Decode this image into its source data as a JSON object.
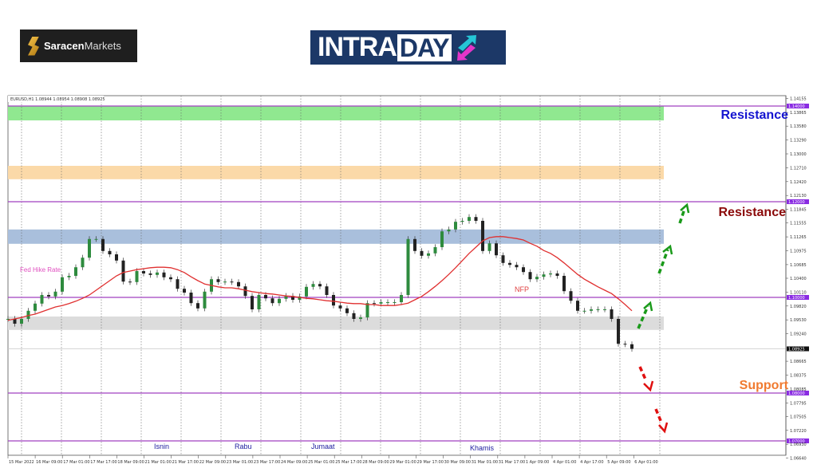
{
  "logos": {
    "saracen": {
      "bold": "Saracen",
      "light": "Markets"
    },
    "intraday": {
      "part1": "INTRA",
      "part2": "DAY"
    }
  },
  "chart_header": "EURUSD,H1 1.08944 1.08954 1.08908 1.08925",
  "colors": {
    "resistance_zone": "#90e890",
    "mid_zone": "#fbd9a8",
    "blue_zone": "#a9bfdc",
    "support_zone": "#dcdcdc",
    "level_line": "#a040c0",
    "ma": "#e03030",
    "bull_arrow": "#1a9a1a",
    "bear_arrow": "#e01010"
  },
  "chart_data": {
    "type": "candlestick",
    "symbol": "EURUSD",
    "timeframe": "H1",
    "x_tick_labels": [
      "15 Mar 2022",
      "16 Mar 09:00",
      "17 Mar 01:00",
      "17 Mar 17:00",
      "18 Mar 09:00",
      "21 Mar 01:00",
      "21 Mar 17:00",
      "22 Mar 09:00",
      "23 Mar 01:00",
      "23 Mar 17:00",
      "24 Mar 09:00",
      "25 Mar 01:00",
      "25 Mar 17:00",
      "28 Mar 09:00",
      "29 Mar 01:00",
      "29 Mar 17:00",
      "30 Mar 09:00",
      "31 Mar 01:00",
      "31 Mar 17:00",
      "1 Apr 09:00",
      "4 Apr 01:00",
      "4 Apr 17:00",
      "5 Apr 09:00",
      "6 Apr 01:00"
    ],
    "y_tick_labels": [
      "1.14155",
      "1.13865",
      "1.13580",
      "1.13290",
      "1.13000",
      "1.12710",
      "1.12420",
      "1.12130",
      "1.11845",
      "1.11555",
      "1.11265",
      "1.10975",
      "1.10685",
      "1.10400",
      "1.10110",
      "1.09820",
      "1.09530",
      "1.09240",
      "1.08665",
      "1.08375",
      "1.08085",
      "1.07795",
      "1.07505",
      "1.07220",
      "1.06930",
      "1.06640"
    ],
    "ylim": [
      1.0655,
      1.1435
    ],
    "price": [
      1.0955,
      1.0945,
      1.0955,
      1.0972,
      1.0987,
      1.1005,
      1.1002,
      1.1012,
      1.1042,
      1.1045,
      1.1063,
      1.1083,
      1.1122,
      1.1122,
      1.1097,
      1.109,
      1.1077,
      1.1033,
      1.1032,
      1.1055,
      1.105,
      1.1047,
      1.1052,
      1.1042,
      1.1038,
      1.1018,
      1.101,
      1.0988,
      1.0977,
      1.1012,
      1.1038,
      1.1032,
      1.1033,
      1.1032,
      1.1023,
      1.1003,
      1.0975,
      1.1005,
      1.0998,
      1.0988,
      1.0997,
      1.1003,
      1.0995,
      1.1002,
      1.1022,
      1.1028,
      1.1023,
      1.1005,
      1.0983,
      1.0977,
      1.0967,
      1.0955,
      1.0958,
      1.0988,
      1.0987,
      1.099,
      1.099,
      1.099,
      1.1005,
      1.1122,
      1.1097,
      1.1087,
      1.1092,
      1.1105,
      1.1138,
      1.1142,
      1.1158,
      1.116,
      1.1168,
      1.116,
      1.1097,
      1.1113,
      1.1088,
      1.1072,
      1.1068,
      1.1063,
      1.1053,
      1.1038,
      1.1043,
      1.1048,
      1.105,
      1.1045,
      1.1013,
      1.0993,
      1.0972,
      1.0972,
      1.0975,
      1.0975,
      1.0975,
      1.0955,
      1.0903,
      1.0902,
      1.08925
    ],
    "moving_average": [
      1.0952,
      1.0955,
      1.0958,
      1.0962,
      1.0965,
      1.097,
      1.0975,
      1.098,
      1.0983,
      1.0987,
      1.0992,
      1.0998,
      1.1005,
      1.1015,
      1.1025,
      1.1035,
      1.1045,
      1.1052,
      1.1055,
      1.1058,
      1.106,
      1.1062,
      1.1063,
      1.1063,
      1.1062,
      1.1058,
      1.1052,
      1.1043,
      1.1035,
      1.1028,
      1.1025,
      1.1022,
      1.102,
      1.102,
      1.1018,
      1.1015,
      1.1012,
      1.101,
      1.1008,
      1.1007,
      1.1005,
      1.1003,
      1.1002,
      1.1,
      1.0998,
      1.0997,
      1.0995,
      1.0993,
      1.0992,
      1.099,
      1.0988,
      1.0987,
      1.0987,
      1.0985,
      1.0985,
      1.0983,
      1.0983,
      1.0983,
      1.0985,
      1.0988,
      1.0995,
      1.1002,
      1.1012,
      1.1023,
      1.1035,
      1.1048,
      1.1062,
      1.1077,
      1.1092,
      1.1105,
      1.1118,
      1.1125,
      1.1127,
      1.1127,
      1.1125,
      1.1123,
      1.112,
      1.1113,
      1.1107,
      1.1098,
      1.1092,
      1.1083,
      1.1072,
      1.106,
      1.1048,
      1.1038,
      1.103,
      1.1022,
      1.1015,
      1.1008,
      1.0997,
      1.0985,
      1.0972
    ],
    "levels": [
      {
        "price": 1.14,
        "label": "1.14000"
      },
      {
        "price": 1.12,
        "label": "1.12000"
      },
      {
        "price": 1.1,
        "label": "1.10000"
      },
      {
        "price": 1.08,
        "label": "1.08000"
      },
      {
        "price": 1.07,
        "label": "1.07000"
      }
    ],
    "last_price": {
      "price": 1.08925,
      "label": "1.08925"
    },
    "zones": [
      {
        "from": 1.137,
        "to": 1.14,
        "color": "#90e890"
      },
      {
        "from": 1.1247,
        "to": 1.1275,
        "color": "#fbd9a8"
      },
      {
        "from": 1.1112,
        "to": 1.1142,
        "color": "#a9bfdc"
      },
      {
        "from": 1.0932,
        "to": 1.096,
        "color": "#dcdcdc"
      }
    ],
    "annotations": {
      "resistance_1": "Resistance",
      "resistance_2": "Resistance",
      "support": "Support",
      "fed": "Fed Hike Rate",
      "nfp": "NFP",
      "days": [
        "Isnin",
        "Rabu",
        "Jumaat",
        "Khamis"
      ]
    }
  }
}
